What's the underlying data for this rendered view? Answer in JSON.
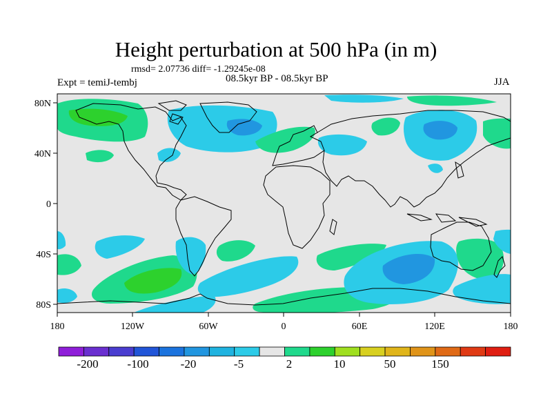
{
  "title": "Height perturbation at 500 hPa (in m)",
  "stats": "rmsd= 2.07736 diff= -1.29245e-08",
  "period": "08.5kyr BP - 08.5kyr BP",
  "experiment": "Expt = temiJ-tembj",
  "season": "JJA",
  "map": {
    "lat_labels": [
      "80N",
      "40N",
      "0",
      "40S",
      "80S"
    ],
    "lon_labels": [
      "180",
      "120W",
      "60W",
      "0",
      "60E",
      "120E",
      "180"
    ],
    "background_color": "#e6e6e6",
    "coastline_color": "#000000"
  },
  "colorbar": {
    "colors": [
      "#8f1ed9",
      "#6a2fd0",
      "#4a3dd0",
      "#2155d8",
      "#1b73de",
      "#2196e0",
      "#1fb3e0",
      "#2ccbe8",
      "#e6e6e6",
      "#1fd98c",
      "#2dd12d",
      "#9fdf1f",
      "#d8d020",
      "#e0b51a",
      "#e09419",
      "#e06a16",
      "#e03a14",
      "#e01e12"
    ],
    "labels": [
      "-200",
      "-100",
      "-20",
      "-5",
      "2",
      "10",
      "50",
      "150"
    ]
  },
  "anomaly_palette": {
    "light_blue": "#2ccbe8",
    "blue": "#1fb3e0",
    "mid_blue": "#2196e0",
    "light_green": "#1fd98c",
    "green": "#2dd12d"
  }
}
